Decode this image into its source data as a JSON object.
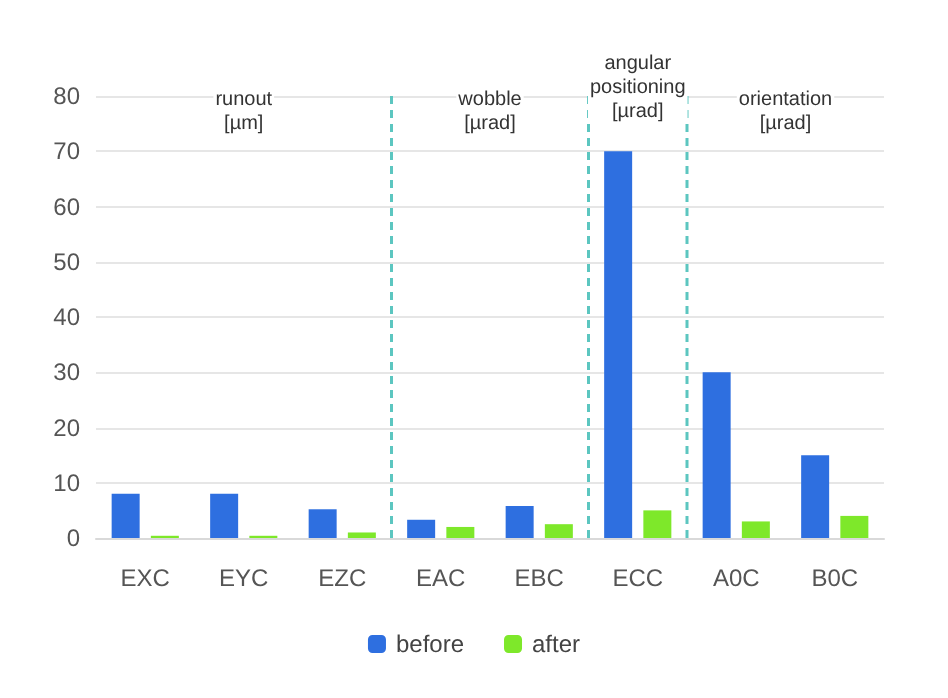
{
  "chart_data": {
    "type": "bar",
    "categories": [
      "EXC",
      "EYC",
      "EZC",
      "EAC",
      "EBC",
      "ECC",
      "A0C",
      "B0C"
    ],
    "series": [
      {
        "name": "before",
        "color": "#2e6fe0",
        "values": [
          8,
          8,
          5.2,
          3.3,
          5.8,
          70,
          30,
          15
        ]
      },
      {
        "name": "after",
        "color": "#7ee82a",
        "values": [
          0.4,
          0.4,
          1,
          2,
          2.5,
          5,
          3,
          4
        ]
      }
    ],
    "ylim": [
      0,
      80
    ],
    "yticks": [
      0,
      10,
      20,
      30,
      40,
      50,
      60,
      70,
      80
    ],
    "grid": "y",
    "legend": "bottom",
    "annotations": [
      "runout\n[µm]",
      "wobble\n[µrad]",
      "angular\npositioning\n[µrad]",
      "orientation\n[µrad]"
    ]
  }
}
